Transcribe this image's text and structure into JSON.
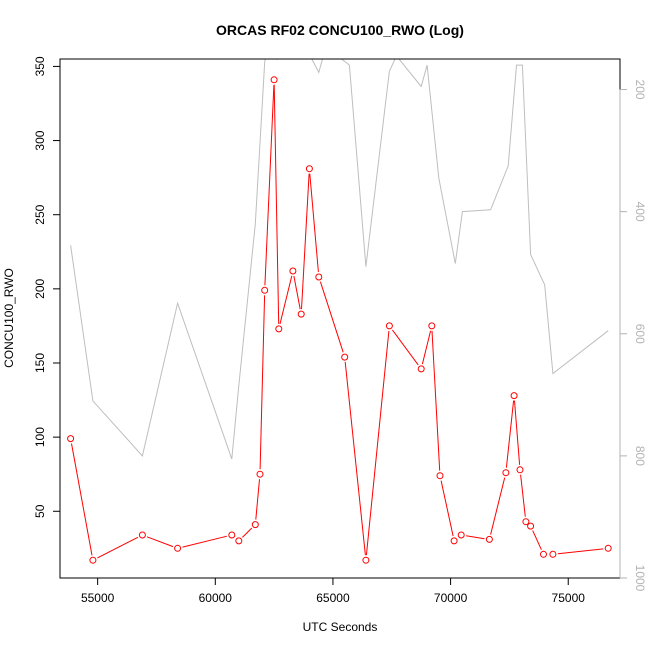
{
  "chart_data": {
    "type": "line",
    "title": "ORCAS RF02 CONCU100_RWO (Log)",
    "xlabel": "UTC Seconds",
    "ylabel": "CONCU100_RWO",
    "y2label": "",
    "xlim": [
      53400,
      77200
    ],
    "ylim": [
      5,
      355
    ],
    "y2lim": [
      1000,
      150
    ],
    "y2_reversed": true,
    "xticks": [
      "55000",
      "60000",
      "65000",
      "70000",
      "75000"
    ],
    "yticks": [
      "50",
      "100",
      "150",
      "200",
      "250",
      "300",
      "350"
    ],
    "y2ticks": [
      "200",
      "400",
      "600",
      "800",
      "1000"
    ],
    "grid": false,
    "colors": {
      "primary": "#ff0000",
      "secondary": "#bebebe",
      "right_axis": "#b3b3b3",
      "frame": "#000000"
    },
    "series": [
      {
        "axis": "left",
        "style": "line+open-circle",
        "x": [
          53850,
          54800,
          56900,
          58400,
          60700,
          61000,
          61700,
          61900,
          62100,
          62500,
          62700,
          63300,
          63650,
          64000,
          64400,
          65500,
          66400,
          67400,
          68750,
          69200,
          69550,
          70150,
          70450,
          71650,
          72350,
          72700,
          72950,
          73200,
          73400,
          73950,
          74350,
          76700
        ],
        "y": [
          99,
          17,
          34,
          25,
          34,
          30,
          41,
          75,
          199,
          341,
          173,
          212,
          183,
          281,
          208,
          154,
          17,
          175,
          146,
          175,
          74,
          30,
          34,
          31,
          76,
          128,
          78,
          43,
          40,
          21,
          21,
          25
        ]
      },
      {
        "axis": "right",
        "style": "line",
        "x": [
          53850,
          54800,
          56900,
          58400,
          60700,
          61000,
          61700,
          62100,
          62300,
          62600,
          63300,
          64100,
          64400,
          64700,
          65700,
          66400,
          67400,
          67700,
          68750,
          69000,
          69500,
          70200,
          70500,
          71700,
          72450,
          72800,
          73050,
          73400,
          74000,
          74350,
          76700
        ],
        "y": [
          455,
          710,
          800,
          550,
          805,
          685,
          420,
          155,
          110,
          150,
          80,
          150,
          172,
          130,
          160,
          490,
          170,
          145,
          195,
          160,
          345,
          485,
          400,
          397,
          325,
          160,
          160,
          470,
          520,
          665,
          595
        ]
      }
    ]
  }
}
